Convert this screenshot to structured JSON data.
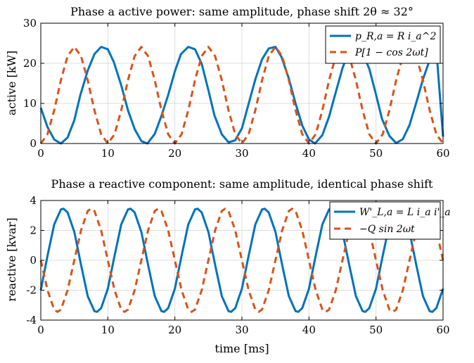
{
  "chart_data": [
    {
      "type": "line",
      "title": "Phase a active power: same amplitude, phase shift 2θ ≈ 32°",
      "xlabel": "",
      "ylabel": "active [kW]",
      "xlim": [
        0,
        60
      ],
      "ylim": [
        0,
        30
      ],
      "xticks": [
        "0",
        "10",
        "20",
        "30",
        "40",
        "50",
        "60"
      ],
      "yticks": [
        "0",
        "10",
        "20",
        "30"
      ],
      "grid": true,
      "legend_position": "top-right",
      "series": [
        {
          "name": "p_R,a = R i_a^2",
          "color": "#0072BD",
          "dash": "solid",
          "x": [
            0,
            1,
            2,
            3,
            4,
            5,
            5.9,
            7,
            8,
            9,
            10,
            10.9,
            12,
            13,
            14,
            15,
            15.9,
            17,
            18,
            19,
            20,
            20.9,
            22,
            23,
            24,
            25,
            25.9,
            27,
            28,
            29,
            30,
            30.9,
            32,
            33,
            34,
            35,
            35.9,
            37,
            38,
            39,
            40,
            40.9,
            42,
            43,
            44,
            45,
            45.9,
            47,
            48,
            49,
            50,
            50.9,
            52,
            53,
            54,
            55,
            55.9,
            57,
            58,
            59,
            60
          ],
          "y": [
            8.9,
            4.1,
            1.0,
            0.0,
            1.5,
            5.8,
            12.1,
            18.2,
            22.3,
            24.1,
            23.5,
            20.3,
            14.5,
            8.3,
            3.6,
            0.6,
            0.0,
            2.4,
            6.9,
            12.1,
            18.0,
            22.3,
            24.1,
            23.5,
            19.9,
            13.3,
            7.0,
            2.3,
            0.3,
            0.8,
            3.8,
            9.3,
            16.0,
            21.0,
            23.7,
            24.1,
            21.6,
            16.2,
            10.0,
            4.5,
            1.0,
            0.0,
            2.1,
            6.7,
            12.8,
            18.8,
            22.8,
            24.1,
            22.6,
            18.6,
            12.2,
            6.1,
            1.9,
            0.1,
            1.1,
            4.6,
            9.6,
            16.0,
            20.8,
            23.4,
            1.7
          ]
        },
        {
          "name": "P[1 − cos 2ωt]",
          "color": "#D95319",
          "dash": "dashed",
          "x": [
            0,
            1,
            2,
            2.5,
            3,
            4,
            5,
            6,
            7,
            7.5,
            8,
            9,
            10,
            11,
            12,
            12.5,
            13,
            14,
            15,
            16,
            17,
            17.5,
            18,
            19,
            20,
            21,
            22,
            22.5,
            23,
            24,
            25,
            26,
            27,
            27.5,
            28,
            29,
            30,
            31,
            32,
            32.5,
            33,
            34,
            35,
            36,
            37,
            37.5,
            38,
            39,
            40,
            41,
            42,
            42.5,
            43,
            44,
            45,
            46,
            47,
            47.5,
            48,
            49,
            50,
            51,
            52,
            52.5,
            53,
            54,
            55,
            56,
            57,
            57.5,
            58,
            59,
            60
          ],
          "y": [
            0.0,
            2.3,
            8.3,
            12.0,
            15.8,
            21.8,
            24.1,
            21.8,
            15.8,
            12.0,
            8.3,
            2.3,
            0.0,
            2.3,
            8.3,
            12.0,
            15.8,
            21.8,
            24.1,
            21.8,
            15.8,
            12.0,
            8.3,
            2.3,
            0.0,
            2.3,
            8.3,
            12.0,
            15.8,
            21.8,
            24.1,
            21.8,
            15.8,
            12.0,
            8.3,
            2.3,
            0.0,
            2.3,
            8.3,
            12.0,
            15.8,
            21.8,
            24.1,
            21.8,
            15.8,
            12.0,
            8.3,
            2.3,
            0.0,
            2.3,
            8.3,
            12.0,
            15.8,
            21.8,
            24.1,
            21.8,
            15.8,
            12.0,
            8.3,
            2.3,
            0.0,
            2.3,
            8.3,
            12.0,
            15.8,
            21.8,
            24.1,
            21.8,
            15.8,
            12.0,
            8.3,
            2.3,
            0.0
          ]
        }
      ]
    },
    {
      "type": "line",
      "title": "Phase a reactive component: same amplitude, identical phase shift",
      "xlabel": "time [ms]",
      "ylabel": "reactive [kvar]",
      "xlim": [
        0,
        60
      ],
      "ylim": [
        -4,
        4
      ],
      "xticks": [
        "0",
        "10",
        "20",
        "30",
        "40",
        "50",
        "60"
      ],
      "yticks": [
        "-4",
        "-2",
        "0",
        "2",
        "4"
      ],
      "grid": true,
      "legend_position": "top-right",
      "series": [
        {
          "name": "W'_L,a = L i_a i'_a",
          "color": "#0072BD",
          "dash": "solid",
          "x": [
            0,
            1,
            2,
            3,
            3.4,
            4,
            5,
            6,
            7,
            8,
            8.4,
            9,
            10,
            11,
            12,
            13,
            13.4,
            14,
            15,
            16,
            17,
            18,
            18.4,
            19,
            20,
            21,
            22,
            23,
            23.4,
            24,
            25,
            26,
            27,
            28,
            28.4,
            29,
            30,
            31,
            32,
            33,
            33.4,
            34,
            35,
            36,
            37,
            38,
            38.4,
            39,
            40,
            41,
            42,
            43,
            43.4,
            44,
            45,
            46,
            47,
            48,
            48.4,
            49,
            50,
            51,
            52,
            53,
            53.4,
            54,
            55,
            56,
            57,
            58,
            58.4,
            59,
            60
          ],
          "y": [
            -2.0,
            0.3,
            2.4,
            3.4,
            3.45,
            3.2,
            1.9,
            -0.3,
            -2.4,
            -3.4,
            -3.45,
            -3.2,
            -1.9,
            0.3,
            2.4,
            3.4,
            3.45,
            3.2,
            1.9,
            -0.3,
            -2.4,
            -3.4,
            -3.45,
            -3.2,
            -1.9,
            0.3,
            2.4,
            3.4,
            3.45,
            3.2,
            1.9,
            -0.3,
            -2.4,
            -3.4,
            -3.45,
            -3.2,
            -1.9,
            0.3,
            2.4,
            3.4,
            3.45,
            3.2,
            1.9,
            -0.3,
            -2.4,
            -3.4,
            -3.45,
            -3.2,
            -1.9,
            0.3,
            2.4,
            3.4,
            3.45,
            3.2,
            1.9,
            -0.3,
            -2.4,
            -3.4,
            -3.45,
            -3.2,
            -1.9,
            0.3,
            2.4,
            3.4,
            3.45,
            3.2,
            1.9,
            -0.3,
            -2.4,
            -3.4,
            -3.45,
            -3.2,
            -1.9
          ]
        },
        {
          "name": "−Q sin 2ωt",
          "color": "#D95319",
          "dash": "dashed",
          "x": [
            0,
            1,
            2,
            2.5,
            3,
            4,
            5,
            6,
            7,
            7.5,
            8,
            9,
            10,
            11,
            12,
            12.5,
            13,
            14,
            15,
            16,
            17,
            17.5,
            18,
            19,
            20,
            21,
            22,
            22.5,
            23,
            24,
            25,
            26,
            27,
            27.5,
            28,
            29,
            30,
            31,
            32,
            32.5,
            33,
            34,
            35,
            36,
            37,
            37.5,
            38,
            39,
            40,
            41,
            42,
            42.5,
            43,
            44,
            45,
            46,
            47,
            47.5,
            48,
            49,
            50,
            51,
            52,
            52.5,
            53,
            54,
            55,
            56,
            57,
            57.5,
            58,
            59,
            60
          ],
          "y": [
            0.0,
            -2.0,
            -3.3,
            -3.45,
            -3.3,
            -2.0,
            0.0,
            2.0,
            3.3,
            3.45,
            3.3,
            2.0,
            0.0,
            -2.0,
            -3.3,
            -3.45,
            -3.3,
            -2.0,
            0.0,
            2.0,
            3.3,
            3.45,
            3.3,
            2.0,
            0.0,
            -2.0,
            -3.3,
            -3.45,
            -3.3,
            -2.0,
            0.0,
            2.0,
            3.3,
            3.45,
            3.3,
            2.0,
            0.0,
            -2.0,
            -3.3,
            -3.45,
            -3.3,
            -2.0,
            0.0,
            2.0,
            3.3,
            3.45,
            3.3,
            2.0,
            0.0,
            -2.0,
            -3.3,
            -3.45,
            -3.3,
            -2.0,
            0.0,
            2.0,
            3.3,
            3.45,
            3.3,
            2.0,
            0.0,
            -2.0,
            -3.3,
            -3.45,
            -3.3,
            -2.0,
            0.0,
            2.0,
            3.3,
            3.45,
            3.3,
            2.0,
            0.0
          ]
        }
      ]
    }
  ]
}
